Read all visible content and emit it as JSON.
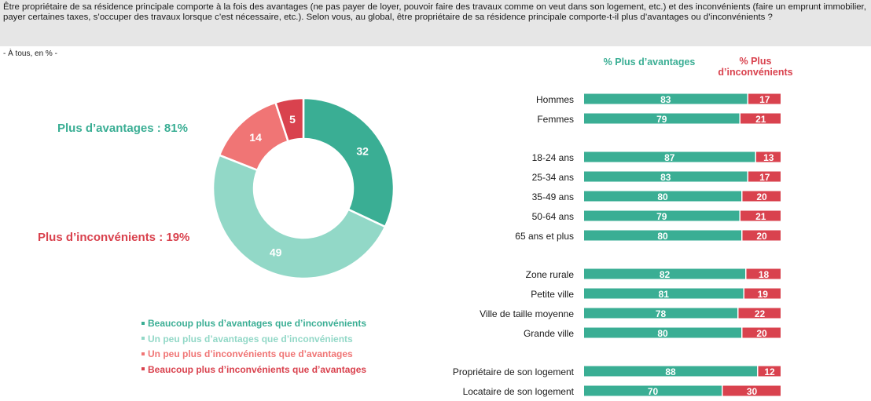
{
  "question": {
    "text": "Être propriétaire de sa résidence principale comporte à la fois des avantages (ne pas payer de loyer, pouvoir faire des travaux comme on veut dans son logement, etc.) et des inconvénients (faire un emprunt immobilier, payer certaines taxes, s’occuper des travaux lorsque c’est nécessaire, etc.). Selon vous, au global, être propriétaire de sa résidence principale comporte-t-il plus d’avantages ou d’inconvénients ?",
    "base": "- À tous, en % -"
  },
  "colors": {
    "dark_green": "#3aae94",
    "light_green": "#92d8c7",
    "light_red": "#f07575",
    "dark_red": "#d9424e",
    "bar_green": "#3aae94",
    "bar_red": "#d9424e"
  },
  "chart_data": [
    {
      "type": "pie",
      "variant": "donut",
      "categories": [
        "Beaucoup plus d’avantages que d’inconvénients",
        "Un peu plus d’avantages que d’inconvénients",
        "Un peu plus d’inconvénients que d’avantages",
        "Beaucoup plus d’inconvénients que d’avantages"
      ],
      "values": [
        32,
        49,
        14,
        5
      ],
      "summary": {
        "advantages": "Plus d’avantages : 81%",
        "inconvenients": "Plus d’inconvénients : 19%"
      },
      "legend_placement": "bottom"
    },
    {
      "type": "bar",
      "orientation": "horizontal",
      "stacked": true,
      "column_headers": {
        "advantages": "% Plus d’avantages",
        "inconvenients": "% Plus d’inconvénients"
      },
      "groups": [
        {
          "rows": [
            {
              "label": "Hommes",
              "adv": 83,
              "inc": 17
            },
            {
              "label": "Femmes",
              "adv": 79,
              "inc": 21
            }
          ]
        },
        {
          "rows": [
            {
              "label": "18-24 ans",
              "adv": 87,
              "inc": 13
            },
            {
              "label": "25-34 ans",
              "adv": 83,
              "inc": 17
            },
            {
              "label": "35-49 ans",
              "adv": 80,
              "inc": 20
            },
            {
              "label": "50-64 ans",
              "adv": 79,
              "inc": 21
            },
            {
              "label": "65 ans et plus",
              "adv": 80,
              "inc": 20
            }
          ]
        },
        {
          "rows": [
            {
              "label": "Zone rurale",
              "adv": 82,
              "inc": 18
            },
            {
              "label": "Petite ville",
              "adv": 81,
              "inc": 19
            },
            {
              "label": "Ville de taille moyenne",
              "adv": 78,
              "inc": 22
            },
            {
              "label": "Grande ville",
              "adv": 80,
              "inc": 20
            }
          ]
        },
        {
          "rows": [
            {
              "label": "Propriétaire de son logement",
              "adv": 88,
              "inc": 12
            },
            {
              "label": "Locataire de son logement",
              "adv": 70,
              "inc": 30
            }
          ]
        }
      ]
    }
  ]
}
